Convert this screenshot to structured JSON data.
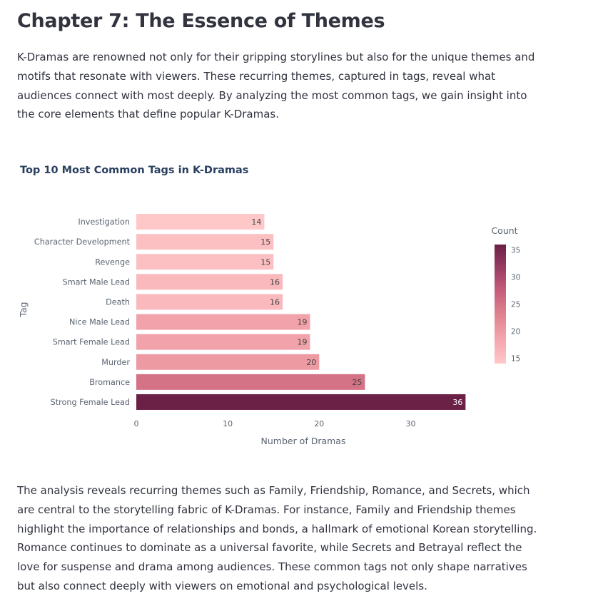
{
  "page": {
    "title": "Chapter 7: The Essence of Themes",
    "intro": "K-Dramas are renowned not only for their gripping storylines but also for the unique themes and motifs that resonate with viewers. These recurring themes, captured in tags, reveal what audiences connect with most deeply. By analyzing the most common tags, we gain insight into the core elements that define popular K-Dramas.",
    "outro": "The analysis reveals recurring themes such as Family, Friendship, Romance, and Secrets, which are central to the storytelling fabric of K-Dramas. For instance, Family and Friendship themes highlight the importance of relationships and bonds, a hallmark of emotional Korean storytelling. Romance continues to dominate as a universal favorite, while Secrets and Betrayal reflect the love for suspense and drama among audiences. These common tags not only shape narratives but also connect deeply with viewers on emotional and psychological levels."
  },
  "chart_data": {
    "type": "bar",
    "orientation": "horizontal",
    "title": "Top 10 Most Common Tags in K-Dramas",
    "xlabel": "Number of Dramas",
    "ylabel": "Tag",
    "categories": [
      "Investigation",
      "Character Development",
      "Revenge",
      "Smart Male Lead",
      "Death",
      "Nice Male Lead",
      "Smart Female Lead",
      "Murder",
      "Bromance",
      "Strong Female Lead"
    ],
    "values": [
      14,
      15,
      15,
      16,
      16,
      19,
      19,
      20,
      25,
      36
    ],
    "xlim": [
      0,
      38
    ],
    "xticks": [
      0,
      10,
      20,
      30
    ],
    "grid": false,
    "colorbar": {
      "title": "Count",
      "range": [
        14,
        36
      ],
      "ticks": [
        15,
        20,
        25,
        30,
        35
      ],
      "colors": [
        "#ffc8c8",
        "#f4a6ae",
        "#e08590",
        "#c85f7c",
        "#9a3d63",
        "#6b2046"
      ]
    }
  }
}
